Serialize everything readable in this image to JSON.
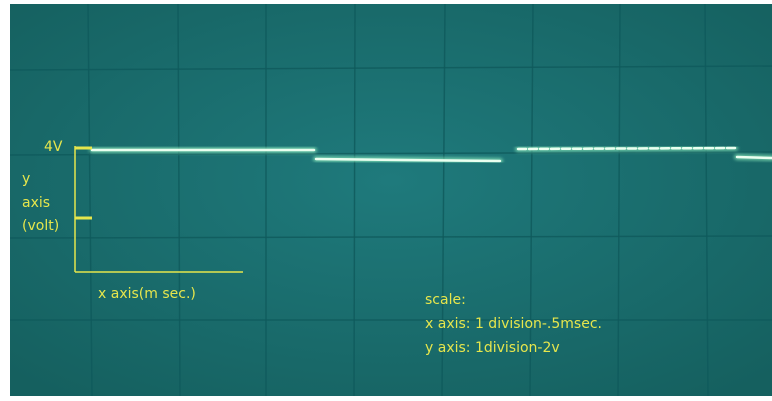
{
  "y_axis_label": {
    "value_mark": "4V",
    "lines": [
      "y",
      "axis",
      "(volt)"
    ]
  },
  "x_axis_label": "x axis(m sec.)",
  "scale_note": {
    "heading": "scale:",
    "x": "x axis: 1 division-.5msec.",
    "y": "y axis: 1division-2v"
  }
}
